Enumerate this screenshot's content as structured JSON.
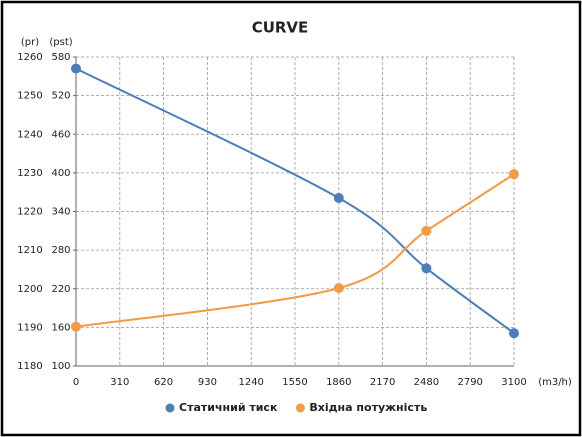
{
  "chart_data": {
    "type": "line",
    "title": "CURVE",
    "y_label": "(pr)",
    "y2_label": "(pst)",
    "x_label": "(m3/h)",
    "x": [
      0,
      1860,
      2480,
      3100
    ],
    "series": [
      {
        "name": "Статичний тиск",
        "color": "#4a7ebb",
        "values": [
          1257,
          1223.5,
          1205.3,
          1188.5
        ]
      },
      {
        "name": "Вхідна потужність",
        "color": "#f39a42",
        "values": [
          161,
          221,
          310,
          398
        ],
        "axis": "y2"
      }
    ],
    "xlim": [
      0,
      3100
    ],
    "xticks": [
      0,
      310,
      620,
      930,
      1240,
      1550,
      1860,
      2170,
      2480,
      2790,
      3100
    ],
    "ylim": [
      1180,
      1260
    ],
    "yticks": [
      1180,
      1190,
      1200,
      1210,
      1220,
      1230,
      1240,
      1250,
      1260
    ],
    "y2lim": [
      100,
      580
    ],
    "y2ticks": [
      100,
      160,
      220,
      280,
      340,
      400,
      460,
      520,
      580
    ],
    "grid": true,
    "legend": "bottom"
  }
}
